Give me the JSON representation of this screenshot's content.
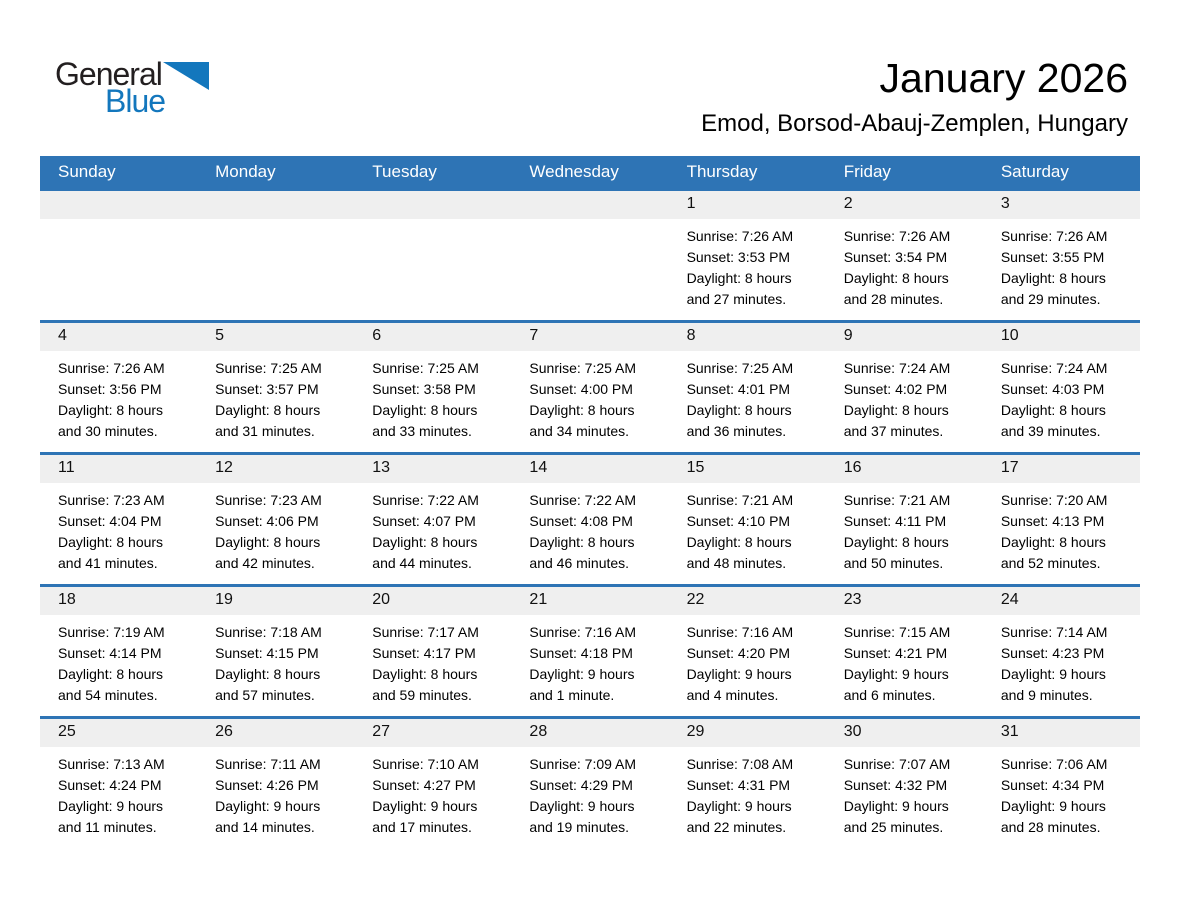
{
  "logo": {
    "general": "General",
    "blue": "Blue"
  },
  "header": {
    "title": "January 2026",
    "subtitle": "Emod, Borsod-Abauj-Zemplen, Hungary"
  },
  "colors": {
    "accent_blue": "#2E74B5",
    "band_gray": "#EFEFEF",
    "logo_blue": "#1377BD",
    "header_text": "#FFFFFF",
    "body_text": "#000000"
  },
  "calendar": {
    "weekdays": [
      "Sunday",
      "Monday",
      "Tuesday",
      "Wednesday",
      "Thursday",
      "Friday",
      "Saturday"
    ],
    "weeks": [
      [
        null,
        null,
        null,
        null,
        {
          "day": "1",
          "sunrise": "Sunrise: 7:26 AM",
          "sunset": "Sunset: 3:53 PM",
          "daylight": [
            "Daylight: 8 hours",
            "and 27 minutes."
          ]
        },
        {
          "day": "2",
          "sunrise": "Sunrise: 7:26 AM",
          "sunset": "Sunset: 3:54 PM",
          "daylight": [
            "Daylight: 8 hours",
            "and 28 minutes."
          ]
        },
        {
          "day": "3",
          "sunrise": "Sunrise: 7:26 AM",
          "sunset": "Sunset: 3:55 PM",
          "daylight": [
            "Daylight: 8 hours",
            "and 29 minutes."
          ]
        }
      ],
      [
        {
          "day": "4",
          "sunrise": "Sunrise: 7:26 AM",
          "sunset": "Sunset: 3:56 PM",
          "daylight": [
            "Daylight: 8 hours",
            "and 30 minutes."
          ]
        },
        {
          "day": "5",
          "sunrise": "Sunrise: 7:25 AM",
          "sunset": "Sunset: 3:57 PM",
          "daylight": [
            "Daylight: 8 hours",
            "and 31 minutes."
          ]
        },
        {
          "day": "6",
          "sunrise": "Sunrise: 7:25 AM",
          "sunset": "Sunset: 3:58 PM",
          "daylight": [
            "Daylight: 8 hours",
            "and 33 minutes."
          ]
        },
        {
          "day": "7",
          "sunrise": "Sunrise: 7:25 AM",
          "sunset": "Sunset: 4:00 PM",
          "daylight": [
            "Daylight: 8 hours",
            "and 34 minutes."
          ]
        },
        {
          "day": "8",
          "sunrise": "Sunrise: 7:25 AM",
          "sunset": "Sunset: 4:01 PM",
          "daylight": [
            "Daylight: 8 hours",
            "and 36 minutes."
          ]
        },
        {
          "day": "9",
          "sunrise": "Sunrise: 7:24 AM",
          "sunset": "Sunset: 4:02 PM",
          "daylight": [
            "Daylight: 8 hours",
            "and 37 minutes."
          ]
        },
        {
          "day": "10",
          "sunrise": "Sunrise: 7:24 AM",
          "sunset": "Sunset: 4:03 PM",
          "daylight": [
            "Daylight: 8 hours",
            "and 39 minutes."
          ]
        }
      ],
      [
        {
          "day": "11",
          "sunrise": "Sunrise: 7:23 AM",
          "sunset": "Sunset: 4:04 PM",
          "daylight": [
            "Daylight: 8 hours",
            "and 41 minutes."
          ]
        },
        {
          "day": "12",
          "sunrise": "Sunrise: 7:23 AM",
          "sunset": "Sunset: 4:06 PM",
          "daylight": [
            "Daylight: 8 hours",
            "and 42 minutes."
          ]
        },
        {
          "day": "13",
          "sunrise": "Sunrise: 7:22 AM",
          "sunset": "Sunset: 4:07 PM",
          "daylight": [
            "Daylight: 8 hours",
            "and 44 minutes."
          ]
        },
        {
          "day": "14",
          "sunrise": "Sunrise: 7:22 AM",
          "sunset": "Sunset: 4:08 PM",
          "daylight": [
            "Daylight: 8 hours",
            "and 46 minutes."
          ]
        },
        {
          "day": "15",
          "sunrise": "Sunrise: 7:21 AM",
          "sunset": "Sunset: 4:10 PM",
          "daylight": [
            "Daylight: 8 hours",
            "and 48 minutes."
          ]
        },
        {
          "day": "16",
          "sunrise": "Sunrise: 7:21 AM",
          "sunset": "Sunset: 4:11 PM",
          "daylight": [
            "Daylight: 8 hours",
            "and 50 minutes."
          ]
        },
        {
          "day": "17",
          "sunrise": "Sunrise: 7:20 AM",
          "sunset": "Sunset: 4:13 PM",
          "daylight": [
            "Daylight: 8 hours",
            "and 52 minutes."
          ]
        }
      ],
      [
        {
          "day": "18",
          "sunrise": "Sunrise: 7:19 AM",
          "sunset": "Sunset: 4:14 PM",
          "daylight": [
            "Daylight: 8 hours",
            "and 54 minutes."
          ]
        },
        {
          "day": "19",
          "sunrise": "Sunrise: 7:18 AM",
          "sunset": "Sunset: 4:15 PM",
          "daylight": [
            "Daylight: 8 hours",
            "and 57 minutes."
          ]
        },
        {
          "day": "20",
          "sunrise": "Sunrise: 7:17 AM",
          "sunset": "Sunset: 4:17 PM",
          "daylight": [
            "Daylight: 8 hours",
            "and 59 minutes."
          ]
        },
        {
          "day": "21",
          "sunrise": "Sunrise: 7:16 AM",
          "sunset": "Sunset: 4:18 PM",
          "daylight": [
            "Daylight: 9 hours",
            "and 1 minute."
          ]
        },
        {
          "day": "22",
          "sunrise": "Sunrise: 7:16 AM",
          "sunset": "Sunset: 4:20 PM",
          "daylight": [
            "Daylight: 9 hours",
            "and 4 minutes."
          ]
        },
        {
          "day": "23",
          "sunrise": "Sunrise: 7:15 AM",
          "sunset": "Sunset: 4:21 PM",
          "daylight": [
            "Daylight: 9 hours",
            "and 6 minutes."
          ]
        },
        {
          "day": "24",
          "sunrise": "Sunrise: 7:14 AM",
          "sunset": "Sunset: 4:23 PM",
          "daylight": [
            "Daylight: 9 hours",
            "and 9 minutes."
          ]
        }
      ],
      [
        {
          "day": "25",
          "sunrise": "Sunrise: 7:13 AM",
          "sunset": "Sunset: 4:24 PM",
          "daylight": [
            "Daylight: 9 hours",
            "and 11 minutes."
          ]
        },
        {
          "day": "26",
          "sunrise": "Sunrise: 7:11 AM",
          "sunset": "Sunset: 4:26 PM",
          "daylight": [
            "Daylight: 9 hours",
            "and 14 minutes."
          ]
        },
        {
          "day": "27",
          "sunrise": "Sunrise: 7:10 AM",
          "sunset": "Sunset: 4:27 PM",
          "daylight": [
            "Daylight: 9 hours",
            "and 17 minutes."
          ]
        },
        {
          "day": "28",
          "sunrise": "Sunrise: 7:09 AM",
          "sunset": "Sunset: 4:29 PM",
          "daylight": [
            "Daylight: 9 hours",
            "and 19 minutes."
          ]
        },
        {
          "day": "29",
          "sunrise": "Sunrise: 7:08 AM",
          "sunset": "Sunset: 4:31 PM",
          "daylight": [
            "Daylight: 9 hours",
            "and 22 minutes."
          ]
        },
        {
          "day": "30",
          "sunrise": "Sunrise: 7:07 AM",
          "sunset": "Sunset: 4:32 PM",
          "daylight": [
            "Daylight: 9 hours",
            "and 25 minutes."
          ]
        },
        {
          "day": "31",
          "sunrise": "Sunrise: 7:06 AM",
          "sunset": "Sunset: 4:34 PM",
          "daylight": [
            "Daylight: 9 hours",
            "and 28 minutes."
          ]
        }
      ]
    ]
  }
}
